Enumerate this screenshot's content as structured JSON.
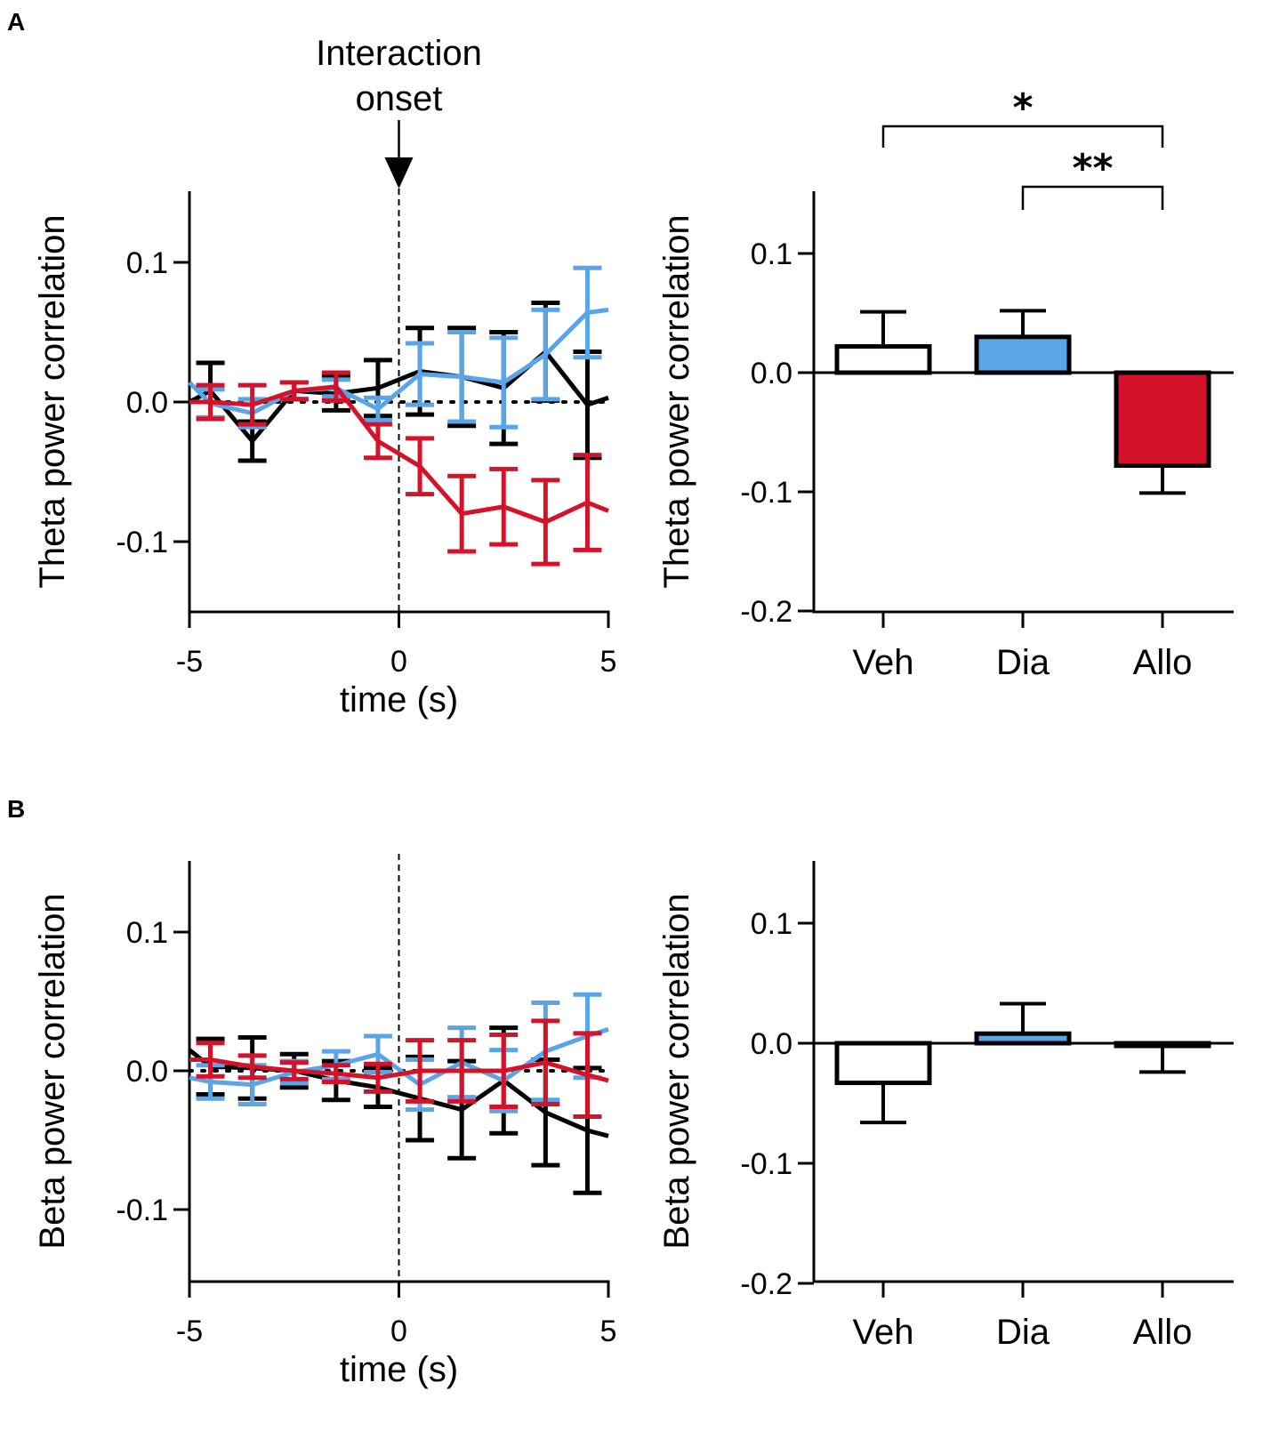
{
  "figure": {
    "panel_a_label": "A",
    "panel_b_label": "B"
  },
  "colors": {
    "vehicle": "#000000",
    "diazepam": "#5aa5e8",
    "allopregnanolone": "#d4132a",
    "axis": "#000000"
  },
  "chart_data": [
    {
      "id": "A-line",
      "type": "line",
      "title": "",
      "xlabel": "time (s)",
      "ylabel": "Theta power correlation",
      "xlim": [
        -5,
        5
      ],
      "ylim": [
        -0.15,
        0.15
      ],
      "xticks": [
        -5,
        0,
        5
      ],
      "xtick_labels": [
        "-5",
        "0",
        "5"
      ],
      "yticks": [
        0.1,
        0.0,
        -0.1
      ],
      "ytick_labels": [
        "0.1",
        "0.0",
        "-0.1"
      ],
      "x": [
        -4.5,
        -3.5,
        -2.5,
        -1.5,
        -0.5,
        0.5,
        1.5,
        2.5,
        3.5,
        4.5
      ],
      "line_ends": [
        -5,
        5
      ],
      "zero_dotted_line": true,
      "onset_annotation": {
        "x": 0,
        "label_line1": "Interaction",
        "label_line2": "onset"
      },
      "series": [
        {
          "name": "Veh",
          "color": "#000000",
          "start": 0.0,
          "end": 0.003,
          "values": [
            0.008,
            -0.028,
            0.008,
            0.006,
            0.01,
            0.022,
            0.018,
            0.01,
            0.036,
            -0.002
          ],
          "errors": [
            0.02,
            0.014,
            0.006,
            0.012,
            0.02,
            0.031,
            0.035,
            0.04,
            0.035,
            0.038
          ]
        },
        {
          "name": "Dia",
          "color": "#5aa5e8",
          "start": 0.014,
          "end": 0.066,
          "values": [
            -0.001,
            -0.008,
            0.008,
            0.01,
            -0.005,
            0.02,
            0.018,
            0.014,
            0.034,
            0.064
          ],
          "errors": [
            0.01,
            0.01,
            0.006,
            0.006,
            0.008,
            0.022,
            0.032,
            0.032,
            0.032,
            0.032
          ]
        },
        {
          "name": "Allo",
          "color": "#d4132a",
          "start": 0.0,
          "end": -0.078,
          "values": [
            0.0,
            -0.002,
            0.008,
            0.011,
            -0.028,
            -0.046,
            -0.08,
            -0.075,
            -0.086,
            -0.072
          ],
          "errors": [
            0.012,
            0.014,
            0.006,
            0.01,
            0.012,
            0.02,
            0.027,
            0.027,
            0.03,
            0.034
          ]
        }
      ]
    },
    {
      "id": "A-bar",
      "type": "bar",
      "title": "",
      "xlabel": "",
      "ylabel": "Theta power correlation",
      "ylim": [
        -0.2,
        0.15
      ],
      "yticks": [
        0.1,
        0.0,
        -0.1,
        -0.2
      ],
      "ytick_labels": [
        "0.1",
        "0.0",
        "-0.1",
        "-0.2"
      ],
      "categories": [
        "Veh",
        "Dia",
        "Allo"
      ],
      "values": [
        0.022,
        0.03,
        -0.078
      ],
      "errors": [
        0.029,
        0.022,
        0.023
      ],
      "bar_colors": [
        "#ffffff",
        "#5aa5e8",
        "#d4132a"
      ],
      "significance": [
        {
          "from": "Veh",
          "to": "Allo",
          "label": "*"
        },
        {
          "from": "Dia",
          "to": "Allo",
          "label": "**"
        }
      ]
    },
    {
      "id": "B-line",
      "type": "line",
      "title": "",
      "xlabel": "time (s)",
      "ylabel": "Beta power correlation",
      "xlim": [
        -5,
        5
      ],
      "ylim": [
        -0.15,
        0.15
      ],
      "xticks": [
        -5,
        0,
        5
      ],
      "xtick_labels": [
        "-5",
        "0",
        "5"
      ],
      "yticks": [
        0.1,
        0.0,
        -0.1
      ],
      "ytick_labels": [
        "0.1",
        "0.0",
        "-0.1"
      ],
      "x": [
        -4.5,
        -3.5,
        -2.5,
        -1.5,
        -0.5,
        0.5,
        1.5,
        2.5,
        3.5,
        4.5
      ],
      "line_ends": [
        -5,
        5
      ],
      "zero_dotted_line": true,
      "onset_annotation": null,
      "series": [
        {
          "name": "Veh",
          "color": "#000000",
          "start": 0.015,
          "end": -0.047,
          "values": [
            0.003,
            0.002,
            0.0,
            -0.007,
            -0.012,
            -0.02,
            -0.028,
            -0.007,
            -0.03,
            -0.043
          ],
          "errors": [
            0.02,
            0.022,
            0.012,
            0.014,
            0.014,
            0.03,
            0.035,
            0.038,
            0.038,
            0.045
          ]
        },
        {
          "name": "Dia",
          "color": "#5aa5e8",
          "start": -0.005,
          "end": 0.03,
          "values": [
            -0.008,
            -0.01,
            -0.001,
            0.004,
            0.012,
            -0.01,
            0.006,
            -0.007,
            0.014,
            0.025
          ],
          "errors": [
            0.012,
            0.014,
            0.008,
            0.01,
            0.013,
            0.018,
            0.025,
            0.022,
            0.035,
            0.03
          ]
        },
        {
          "name": "Allo",
          "color": "#d4132a",
          "start": 0.008,
          "end": -0.007,
          "values": [
            0.008,
            0.003,
            0.0,
            -0.002,
            -0.005,
            0.0,
            0.0,
            0.0,
            0.006,
            -0.003
          ],
          "errors": [
            0.012,
            0.008,
            0.006,
            0.006,
            0.01,
            0.022,
            0.022,
            0.026,
            0.03,
            0.03
          ]
        }
      ]
    },
    {
      "id": "B-bar",
      "type": "bar",
      "title": "",
      "xlabel": "",
      "ylabel": "Beta power correlation",
      "ylim": [
        -0.2,
        0.15
      ],
      "yticks": [
        0.1,
        0.0,
        -0.1,
        -0.2
      ],
      "ytick_labels": [
        "0.1",
        "0.0",
        "-0.1",
        "-0.2"
      ],
      "categories": [
        "Veh",
        "Dia",
        "Allo"
      ],
      "values": [
        -0.033,
        0.008,
        -0.002
      ],
      "errors": [
        0.033,
        0.025,
        0.022
      ],
      "bar_colors": [
        "#ffffff",
        "#5aa5e8",
        "#d4132a"
      ],
      "significance": []
    }
  ]
}
